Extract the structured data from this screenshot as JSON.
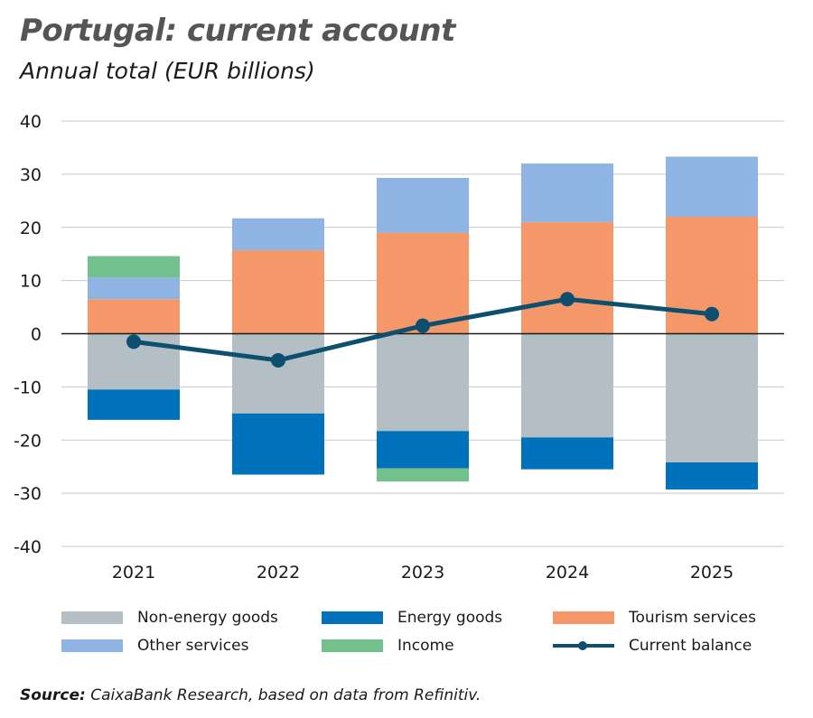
{
  "header": {
    "title": "Portugal: current account",
    "subtitle": "Annual total (EUR billions)"
  },
  "footer": {
    "source_label": "Source:",
    "source_text": "CaixaBank Research, based on data from Refinitiv."
  },
  "colors": {
    "non_energy_goods": "#b3bfc4",
    "energy_goods": "#0071bb",
    "tourism_services": "#f4986a",
    "other_services": "#8fb3e3",
    "income": "#72c08b",
    "current_balance": "#0d4f6e"
  },
  "chart_data": {
    "type": "bar",
    "stacked": true,
    "categories": [
      "2021",
      "2022",
      "2023",
      "2024",
      "2025"
    ],
    "ylim": [
      -40,
      40
    ],
    "yticks": [
      40,
      30,
      20,
      10,
      0,
      -10,
      -20,
      -30,
      -40
    ],
    "grid": true,
    "legend_position": "bottom",
    "series": [
      {
        "name": "Non-energy goods",
        "key": "non_energy_goods",
        "values": [
          -10.5,
          -15.0,
          -18.3,
          -19.5,
          -24.2
        ]
      },
      {
        "name": "Energy goods",
        "key": "energy_goods",
        "values": [
          -5.7,
          -11.5,
          -7.0,
          -6.0,
          -5.1
        ]
      },
      {
        "name": "Tourism services",
        "key": "tourism_services",
        "values": [
          6.5,
          15.7,
          19.0,
          21.0,
          22.0
        ]
      },
      {
        "name": "Other services",
        "key": "other_services",
        "values": [
          4.1,
          6.0,
          10.3,
          11.0,
          11.3
        ]
      },
      {
        "name": "Income",
        "key": "income",
        "values": [
          4.0,
          0.0,
          -2.5,
          0.0,
          0.0
        ]
      }
    ],
    "line": {
      "name": "Current balance",
      "key": "current_balance",
      "values": [
        -1.5,
        -5.0,
        1.5,
        6.5,
        3.7
      ]
    }
  }
}
